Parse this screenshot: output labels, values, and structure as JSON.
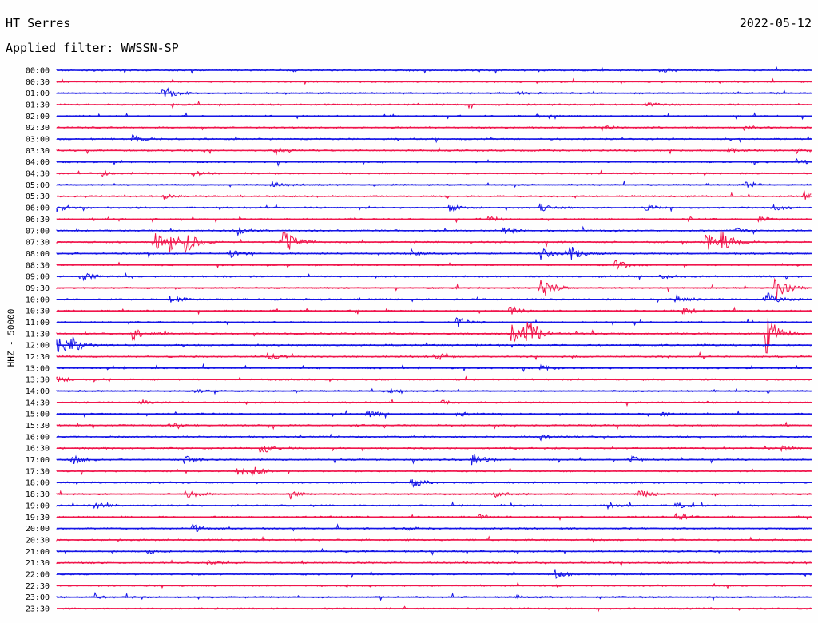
{
  "header": {
    "station": "HT Serres",
    "filter": "Applied filter: WWSSN-SP",
    "date": "2022-05-12",
    "channel": "HHZ - 50000"
  },
  "colors": {
    "blue": "#1414e6",
    "red": "#f0144b"
  },
  "chart_data": {
    "type": "line",
    "subtype": "helicorder",
    "title": "HT Serres",
    "subtitle": "Applied filter: WWSSN-SP",
    "date": "2022-05-12",
    "ylabel": "HHZ - 50000",
    "xlabel": "",
    "grid": false,
    "legend": "none",
    "row_duration_minutes": 30,
    "row_colors_alternate": [
      "blue",
      "red"
    ],
    "rows": [
      {
        "label": "00:00",
        "events": [
          {
            "t": 0.8,
            "amp": 3
          }
        ]
      },
      {
        "label": "00:30",
        "events": []
      },
      {
        "label": "01:00",
        "events": [
          {
            "t": 0.14,
            "amp": 10
          },
          {
            "t": 0.61,
            "amp": 2
          }
        ]
      },
      {
        "label": "01:30",
        "events": [
          {
            "t": 0.78,
            "amp": 3
          }
        ]
      },
      {
        "label": "02:00",
        "events": [
          {
            "t": 0.63,
            "amp": 3
          }
        ]
      },
      {
        "label": "02:30",
        "events": [
          {
            "t": 0.72,
            "amp": 4
          },
          {
            "t": 0.91,
            "amp": 3
          }
        ]
      },
      {
        "label": "03:00",
        "events": [
          {
            "t": 0.1,
            "amp": 5
          }
        ]
      },
      {
        "label": "03:30",
        "events": [
          {
            "t": 0.29,
            "amp": 8
          },
          {
            "t": 0.89,
            "amp": 3
          },
          {
            "t": 0.98,
            "amp": 3
          }
        ]
      },
      {
        "label": "04:00",
        "events": [
          {
            "t": 0.98,
            "amp": 4
          }
        ]
      },
      {
        "label": "04:30",
        "events": [
          {
            "t": 0.06,
            "amp": 3
          },
          {
            "t": 0.18,
            "amp": 3
          }
        ]
      },
      {
        "label": "05:00",
        "events": [
          {
            "t": 0.28,
            "amp": 6
          },
          {
            "t": 0.91,
            "amp": 4
          }
        ]
      },
      {
        "label": "05:30",
        "events": [
          {
            "t": 0.14,
            "amp": 3
          },
          {
            "t": 0.99,
            "amp": 5
          }
        ]
      },
      {
        "label": "06:00",
        "events": [
          {
            "t": 0.0,
            "amp": 5
          },
          {
            "t": 0.52,
            "amp": 4
          },
          {
            "t": 0.64,
            "amp": 5
          },
          {
            "t": 0.78,
            "amp": 4
          },
          {
            "t": 0.95,
            "amp": 4
          }
        ]
      },
      {
        "label": "06:30",
        "events": [
          {
            "t": 0.57,
            "amp": 5
          },
          {
            "t": 0.93,
            "amp": 3
          }
        ]
      },
      {
        "label": "07:00",
        "events": [
          {
            "t": 0.24,
            "amp": 5
          },
          {
            "t": 0.59,
            "amp": 6
          },
          {
            "t": 0.9,
            "amp": 4
          }
        ]
      },
      {
        "label": "07:30",
        "events": [
          {
            "t": 0.13,
            "amp": 12
          },
          {
            "t": 0.15,
            "amp": 10
          },
          {
            "t": 0.17,
            "amp": 14
          },
          {
            "t": 0.3,
            "amp": 18
          },
          {
            "t": 0.86,
            "amp": 12
          },
          {
            "t": 0.88,
            "amp": 18
          }
        ]
      },
      {
        "label": "08:00",
        "events": [
          {
            "t": 0.23,
            "amp": 5
          },
          {
            "t": 0.47,
            "amp": 5
          },
          {
            "t": 0.64,
            "amp": 8
          },
          {
            "t": 0.68,
            "amp": 10
          }
        ]
      },
      {
        "label": "08:30",
        "events": [
          {
            "t": 0.74,
            "amp": 6
          }
        ]
      },
      {
        "label": "09:00",
        "events": [
          {
            "t": 0.03,
            "amp": 8
          },
          {
            "t": 0.8,
            "amp": 3
          }
        ]
      },
      {
        "label": "09:30",
        "events": [
          {
            "t": 0.64,
            "amp": 18
          },
          {
            "t": 0.95,
            "amp": 20
          }
        ]
      },
      {
        "label": "10:00",
        "events": [
          {
            "t": 0.15,
            "amp": 6
          },
          {
            "t": 0.82,
            "amp": 5
          },
          {
            "t": 0.94,
            "amp": 10
          }
        ]
      },
      {
        "label": "10:30",
        "events": [
          {
            "t": 0.6,
            "amp": 6
          },
          {
            "t": 0.83,
            "amp": 5
          }
        ]
      },
      {
        "label": "11:00",
        "events": [
          {
            "t": 0.53,
            "amp": 7
          }
        ]
      },
      {
        "label": "11:30",
        "events": [
          {
            "t": 0.1,
            "amp": 8
          },
          {
            "t": 0.6,
            "amp": 15
          },
          {
            "t": 0.62,
            "amp": 25
          },
          {
            "t": 0.94,
            "amp": 30
          }
        ]
      },
      {
        "label": "12:00",
        "events": [
          {
            "t": 0.0,
            "amp": 16
          },
          {
            "t": 0.02,
            "amp": 10
          }
        ]
      },
      {
        "label": "12:30",
        "events": [
          {
            "t": 0.28,
            "amp": 6
          },
          {
            "t": 0.5,
            "amp": 6
          }
        ]
      },
      {
        "label": "13:00",
        "events": [
          {
            "t": 0.64,
            "amp": 3
          }
        ]
      },
      {
        "label": "13:30",
        "events": [
          {
            "t": 0.0,
            "amp": 4
          }
        ]
      },
      {
        "label": "14:00",
        "events": [
          {
            "t": 0.18,
            "amp": 3
          },
          {
            "t": 0.44,
            "amp": 3
          }
        ]
      },
      {
        "label": "14:30",
        "events": [
          {
            "t": 0.11,
            "amp": 3
          },
          {
            "t": 0.51,
            "amp": 3
          }
        ]
      },
      {
        "label": "15:00",
        "events": [
          {
            "t": 0.41,
            "amp": 5
          },
          {
            "t": 0.53,
            "amp": 4
          },
          {
            "t": 0.8,
            "amp": 3
          }
        ]
      },
      {
        "label": "15:30",
        "events": [
          {
            "t": 0.15,
            "amp": 3
          }
        ]
      },
      {
        "label": "16:00",
        "events": [
          {
            "t": 0.64,
            "amp": 4
          }
        ]
      },
      {
        "label": "16:30",
        "events": [
          {
            "t": 0.27,
            "amp": 8
          },
          {
            "t": 0.96,
            "amp": 3
          }
        ]
      },
      {
        "label": "17:00",
        "events": [
          {
            "t": 0.02,
            "amp": 6
          },
          {
            "t": 0.17,
            "amp": 5
          },
          {
            "t": 0.55,
            "amp": 9
          },
          {
            "t": 0.76,
            "amp": 5
          }
        ]
      },
      {
        "label": "17:30",
        "events": [
          {
            "t": 0.24,
            "amp": 7
          },
          {
            "t": 0.26,
            "amp": 6
          }
        ]
      },
      {
        "label": "18:00",
        "events": [
          {
            "t": 0.47,
            "amp": 7
          }
        ]
      },
      {
        "label": "18:30",
        "events": [
          {
            "t": 0.17,
            "amp": 7
          },
          {
            "t": 0.31,
            "amp": 4
          },
          {
            "t": 0.58,
            "amp": 4
          },
          {
            "t": 0.77,
            "amp": 7
          }
        ]
      },
      {
        "label": "19:00",
        "events": [
          {
            "t": 0.05,
            "amp": 4
          },
          {
            "t": 0.73,
            "amp": 4
          },
          {
            "t": 0.82,
            "amp": 4
          }
        ]
      },
      {
        "label": "19:30",
        "events": [
          {
            "t": 0.56,
            "amp": 4
          },
          {
            "t": 0.82,
            "amp": 7
          }
        ]
      },
      {
        "label": "20:00",
        "events": [
          {
            "t": 0.18,
            "amp": 5
          },
          {
            "t": 0.46,
            "amp": 3
          }
        ]
      },
      {
        "label": "20:30",
        "events": []
      },
      {
        "label": "21:00",
        "events": [
          {
            "t": 0.12,
            "amp": 3
          }
        ]
      },
      {
        "label": "21:30",
        "events": [
          {
            "t": 0.2,
            "amp": 2
          }
        ]
      },
      {
        "label": "22:00",
        "events": [
          {
            "t": 0.66,
            "amp": 5
          }
        ]
      },
      {
        "label": "22:30",
        "events": []
      },
      {
        "label": "23:00",
        "events": [
          {
            "t": 0.05,
            "amp": 2
          },
          {
            "t": 0.61,
            "amp": 2
          }
        ]
      },
      {
        "label": "23:30",
        "events": []
      }
    ]
  }
}
